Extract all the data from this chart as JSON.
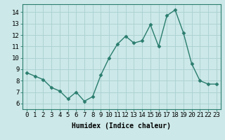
{
  "x": [
    0,
    1,
    2,
    3,
    4,
    5,
    6,
    7,
    8,
    9,
    10,
    11,
    12,
    13,
    14,
    15,
    16,
    17,
    18,
    19,
    20,
    21,
    22,
    23
  ],
  "y": [
    8.7,
    8.4,
    8.1,
    7.4,
    7.1,
    6.4,
    7.0,
    6.2,
    6.6,
    8.5,
    10.0,
    11.2,
    11.9,
    11.3,
    11.5,
    12.9,
    11.0,
    13.7,
    14.2,
    12.2,
    9.5,
    8.0,
    7.7,
    7.7
  ],
  "line_color": "#2a7d6e",
  "marker": "D",
  "marker_size": 2.5,
  "line_width": 1.0,
  "xlabel": "Humidex (Indice chaleur)",
  "xlabel_fontsize": 7,
  "xlim": [
    -0.5,
    23.5
  ],
  "ylim": [
    5.5,
    14.7
  ],
  "yticks": [
    6,
    7,
    8,
    9,
    10,
    11,
    12,
    13,
    14
  ],
  "xticks": [
    0,
    1,
    2,
    3,
    4,
    5,
    6,
    7,
    8,
    9,
    10,
    11,
    12,
    13,
    14,
    15,
    16,
    17,
    18,
    19,
    20,
    21,
    22,
    23
  ],
  "xtick_labels": [
    "0",
    "1",
    "2",
    "3",
    "4",
    "5",
    "6",
    "7",
    "8",
    "9",
    "10",
    "11",
    "12",
    "13",
    "14",
    "15",
    "16",
    "17",
    "18",
    "19",
    "20",
    "21",
    "22",
    "23"
  ],
  "background_color": "#cce8e8",
  "grid_color": "#aacfcf",
  "tick_fontsize": 6.5,
  "spine_color": "#2a7d6e"
}
